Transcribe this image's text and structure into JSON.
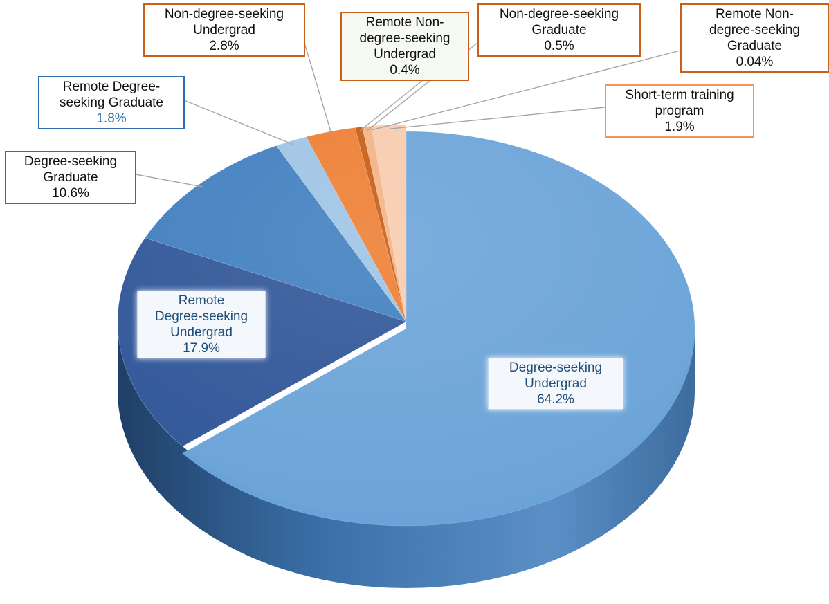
{
  "chart_data": {
    "type": "pie",
    "title": "",
    "slices": [
      {
        "label": "Degree-seeking Undergrad",
        "value_text": "64.2%",
        "value": 64.2,
        "color": "#6aa3d8"
      },
      {
        "label": "Remote Degree-seeking Undergrad",
        "value_text": "17.9%",
        "value": 17.9,
        "color": "#2f5597"
      },
      {
        "label": "Degree-seeking Graduate",
        "value_text": "10.6%",
        "value": 10.6,
        "color": "#3f7ebf"
      },
      {
        "label": "Remote Degree-seeking Graduate",
        "value_text": "1.8%",
        "value": 1.8,
        "color": "#9dc3e6"
      },
      {
        "label": "Non-degree-seeking Undergrad",
        "value_text": "2.8%",
        "value": 2.8,
        "color": "#ed7d31"
      },
      {
        "label": "Remote Non-degree-seeking Undergrad",
        "value_text": "0.4%",
        "value": 0.4,
        "color": "#c55a11"
      },
      {
        "label": "Non-degree-seeking Graduate",
        "value_text": "0.5%",
        "value": 0.5,
        "color": "#f4b183"
      },
      {
        "label": "Remote Non-degree-seeking Graduate",
        "value_text": "0.04%",
        "value": 0.04,
        "color": "#e8a77b"
      },
      {
        "label": "Short-term training program",
        "value_text": "1.9%",
        "value": 1.9,
        "color": "#f8cbad"
      }
    ],
    "label_lines": {
      "degree_ug": [
        "Degree-seeking",
        "Undergrad"
      ],
      "remote_degree_ug": [
        "Remote",
        "Degree-seeking",
        "Undergrad"
      ],
      "degree_grad": [
        "Degree-seeking",
        "Graduate"
      ],
      "remote_degree_grad": [
        "Remote Degree-",
        "seeking Graduate"
      ],
      "nondegree_ug": [
        "Non-degree-seeking",
        "Undergrad"
      ],
      "remote_nondegree_ug": [
        "Remote Non-",
        "degree-seeking",
        "Undergrad"
      ],
      "nondegree_grad": [
        "Non-degree-seeking",
        "Graduate"
      ],
      "remote_nondegree_grad": [
        "Remote Non-",
        "degree-seeking",
        "Graduate"
      ],
      "short_term": [
        "Short-term training",
        "program"
      ]
    }
  }
}
